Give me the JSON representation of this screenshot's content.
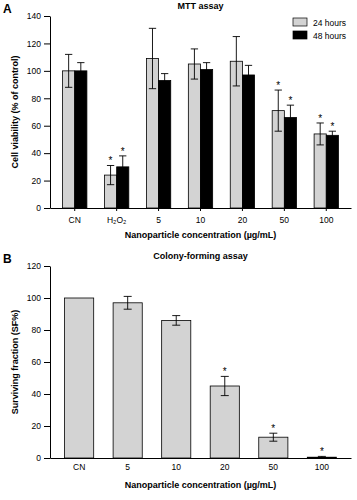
{
  "chart_data": [
    {
      "type": "bar",
      "panel": "A",
      "title": "MTT assay",
      "x_label": "Nanoparticle concentration (µg/mL)",
      "y_label": "Cell viability (% of control)",
      "categories": [
        "CN",
        "H₂O₂",
        "5",
        "10",
        "20",
        "50",
        "100"
      ],
      "series": [
        {
          "name": "24 hours",
          "color": "#d3d3d3",
          "values": [
            100,
            24,
            109,
            105,
            107,
            71,
            54
          ],
          "errors": [
            12,
            7,
            22,
            11,
            18,
            15,
            8
          ],
          "annotations": [
            null,
            "*",
            null,
            null,
            null,
            "*",
            "*"
          ]
        },
        {
          "name": "48 hours",
          "color": "#000000",
          "values": [
            100,
            30,
            93,
            101,
            97,
            66,
            53
          ],
          "errors": [
            6,
            8,
            5,
            5,
            7,
            9,
            3
          ],
          "annotations": [
            null,
            "*",
            null,
            null,
            null,
            "*",
            "*"
          ]
        }
      ],
      "ylim": [
        0,
        140
      ],
      "yticks": [
        0,
        20,
        40,
        60,
        80,
        100,
        120,
        140
      ],
      "legend": "upper right"
    },
    {
      "type": "bar",
      "panel": "B",
      "title": "Colony-forming assay",
      "x_label": "Nanoparticle concentration (µg/mL)",
      "y_label": "Surviving fraction (SF%)",
      "categories": [
        "CN",
        "5",
        "10",
        "20",
        "50",
        "100"
      ],
      "values": [
        100,
        97,
        86,
        45,
        13,
        0.5
      ],
      "errors": [
        null,
        4,
        3,
        6,
        2.5,
        0.5
      ],
      "annotations": [
        null,
        null,
        null,
        "*",
        "*",
        "*"
      ],
      "color": "#d3d3d3",
      "ylim": [
        0,
        120
      ],
      "yticks": [
        0,
        20,
        40,
        60,
        80,
        100,
        120
      ]
    }
  ]
}
